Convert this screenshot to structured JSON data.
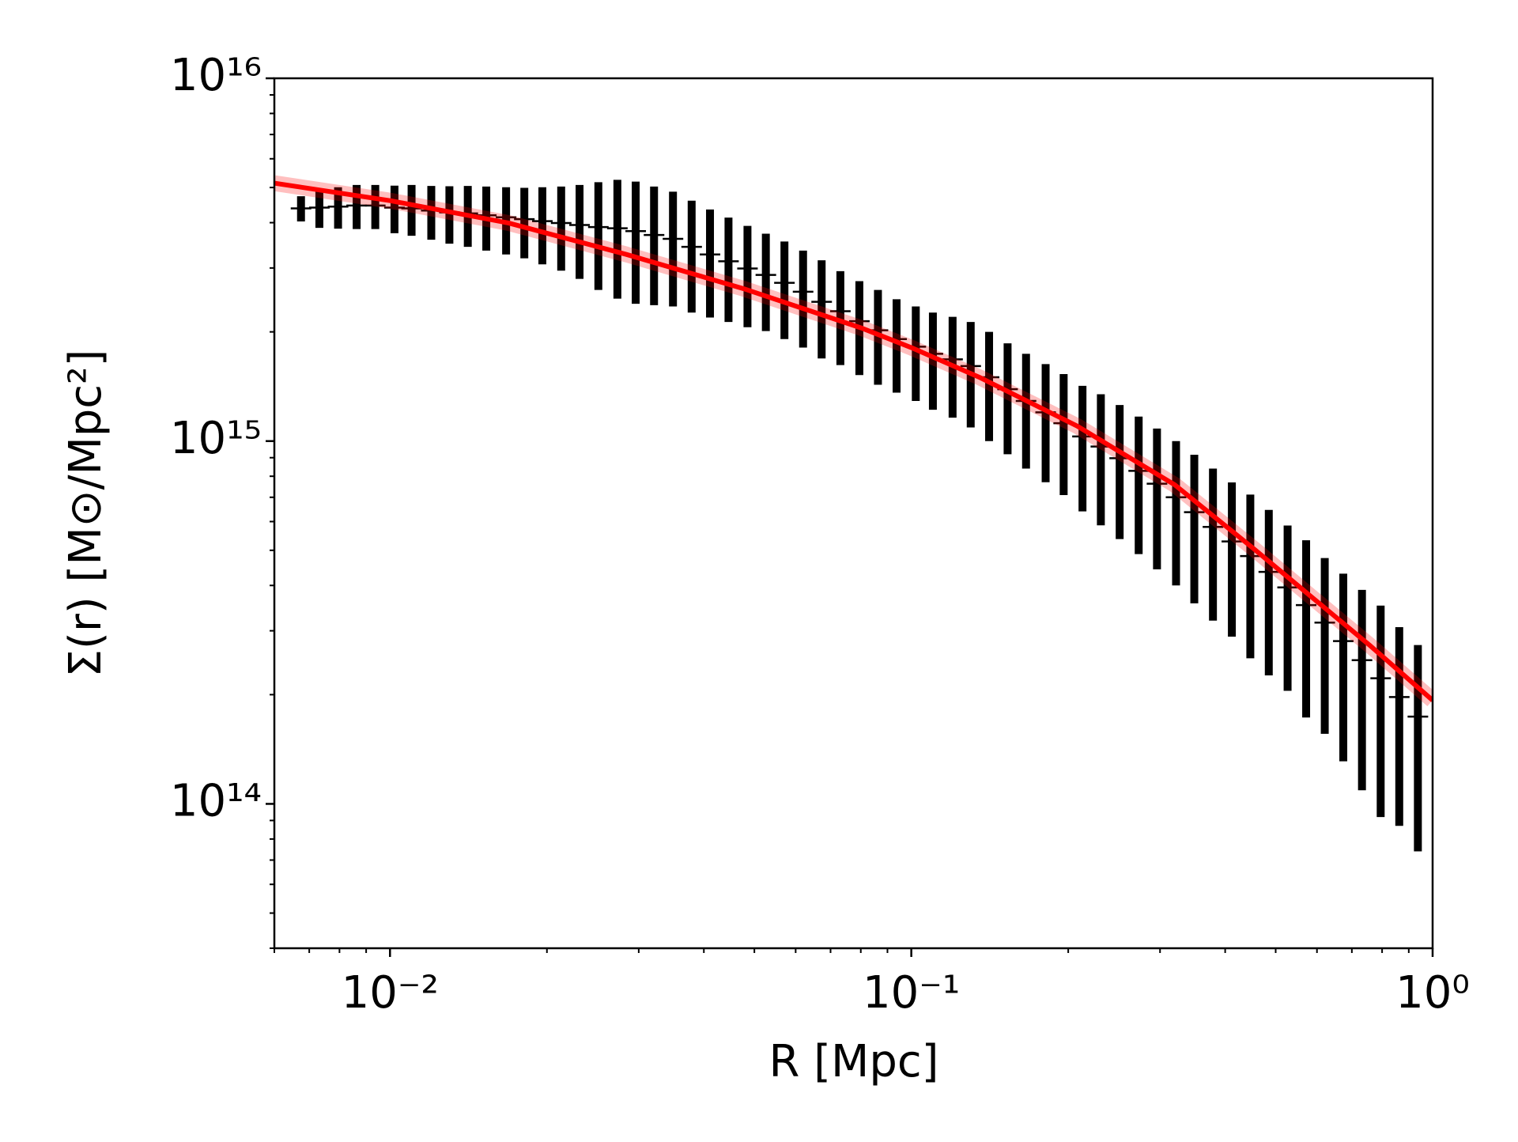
{
  "chart_data": {
    "type": "errorbar",
    "xlabel": "R [Mpc]",
    "ylabel": "Σ(r) [M⊙/Mpc²]",
    "xlog": true,
    "ylog": true,
    "xlim": [
      0.006,
      1
    ],
    "ylim": [
      40000000000000.0,
      1e+16
    ],
    "xticks": [
      {
        "value": 0.01,
        "label": "10⁻²"
      },
      {
        "value": 0.1,
        "label": "10⁻¹"
      },
      {
        "value": 1,
        "label": "10⁰"
      }
    ],
    "yticks": [
      {
        "value": 100000000000000.0,
        "label": "10¹⁴"
      },
      {
        "value": 1000000000000000.0,
        "label": "10¹⁵"
      },
      {
        "value": 1e+16,
        "label": "10¹⁶"
      }
    ],
    "xminorticks": [
      0.006,
      0.007,
      0.008,
      0.009,
      0.02,
      0.03,
      0.04,
      0.05,
      0.06,
      0.07,
      0.08,
      0.09,
      0.2,
      0.3,
      0.4,
      0.5,
      0.6,
      0.7,
      0.8,
      0.9
    ],
    "yminorticks": [
      40000000000000.0,
      50000000000000.0,
      60000000000000.0,
      70000000000000.0,
      80000000000000.0,
      90000000000000.0,
      200000000000000.0,
      300000000000000.0,
      400000000000000.0,
      500000000000000.0,
      600000000000000.0,
      700000000000000.0,
      800000000000000.0,
      900000000000000.0,
      2000000000000000.0,
      3000000000000000.0,
      4000000000000000.0,
      5000000000000000.0,
      6000000000000000.0,
      7000000000000000.0,
      8000000000000000.0,
      9000000000000000.0
    ],
    "series": [
      {
        "type": "errorbar",
        "color": "#000000",
        "x": [
          0.00675,
          0.00732,
          0.00795,
          0.00863,
          0.00937,
          0.0102,
          0.011,
          0.012,
          0.013,
          0.0141,
          0.0153,
          0.0167,
          0.0181,
          0.0196,
          0.0213,
          0.0231,
          0.0251,
          0.0273,
          0.0296,
          0.0321,
          0.0349,
          0.0379,
          0.0411,
          0.0446,
          0.0485,
          0.0526,
          0.0571,
          0.062,
          0.0673,
          0.0731,
          0.0795,
          0.0863,
          0.0937,
          0.102,
          0.11,
          0.12,
          0.13,
          0.141,
          0.153,
          0.166,
          0.181,
          0.196,
          0.213,
          0.231,
          0.251,
          0.273,
          0.296,
          0.322,
          0.349,
          0.379,
          0.412,
          0.447,
          0.485,
          0.527,
          0.572,
          0.621,
          0.674,
          0.732,
          0.795,
          0.863,
          0.937
        ],
        "values": [
          4380000000000000.0,
          4400000000000000.0,
          4430000000000000.0,
          4460000000000000.0,
          4460000000000000.0,
          4400000000000000.0,
          4380000000000000.0,
          4320000000000000.0,
          4270000000000000.0,
          4240000000000000.0,
          4190000000000000.0,
          4140000000000000.0,
          4090000000000000.0,
          4040000000000000.0,
          3990000000000000.0,
          3940000000000000.0,
          3890000000000000.0,
          3860000000000000.0,
          3790000000000000.0,
          3700000000000000.0,
          3610000000000000.0,
          3430000000000000.0,
          3270000000000000.0,
          3130000000000000.0,
          2990000000000000.0,
          2870000000000000.0,
          2730000000000000.0,
          2580000000000000.0,
          2420000000000000.0,
          2280000000000000.0,
          2140000000000000.0,
          2020000000000000.0,
          1910000000000000.0,
          1820000000000000.0,
          1740000000000000.0,
          1680000000000000.0,
          1610000000000000.0,
          1500000000000000.0,
          1390000000000000.0,
          1290000000000000.0,
          1200000000000000.0,
          1120000000000000.0,
          1030000000000000.0,
          966000000000000.0,
          897000000000000.0,
          828000000000000.0,
          763000000000000.0,
          700000000000000.0,
          637000000000000.0,
          580000000000000.0,
          529000000000000.0,
          482000000000000.0,
          436000000000000.0,
          395000000000000.0,
          353000000000000.0,
          316000000000000.0,
          281000000000000.0,
          249000000000000.0,
          222000000000000.0,
          197000000000000.0,
          174000000000000.0
        ],
        "errors": [
          350000000000000.0,
          530000000000000.0,
          580000000000000.0,
          620000000000000.0,
          620000000000000.0,
          660000000000000.0,
          700000000000000.0,
          730000000000000.0,
          770000000000000.0,
          810000000000000.0,
          840000000000000.0,
          870000000000000.0,
          900000000000000.0,
          970000000000000.0,
          1040000000000000.0,
          1140000000000000.0,
          1280000000000000.0,
          1390000000000000.0,
          1400000000000000.0,
          1330000000000000.0,
          1260000000000000.0,
          1170000000000000.0,
          1080000000000000.0,
          1000000000000000.0,
          930000000000000.0,
          860000000000000.0,
          820000000000000.0,
          770000000000000.0,
          730000000000000.0,
          660000000000000.0,
          620000000000000.0,
          590000000000000.0,
          550000000000000.0,
          530000000000000.0,
          520000000000000.0,
          520000000000000.0,
          520000000000000.0,
          500000000000000.0,
          470000000000000.0,
          450000000000000.0,
          430000000000000.0,
          410000000000000.0,
          390000000000000.0,
          380000000000000.0,
          360000000000000.0,
          340000000000000.0,
          320000000000000.0,
          300000000000000.0,
          280000000000000.0,
          260000000000000.0,
          240000000000000.0,
          230000000000000.0,
          210000000000000.0,
          190000000000000.0,
          180000000000000.0,
          160000000000000.0,
          150000000000000.0,
          140000000000000.0,
          130000000000000.0,
          110000000000000.0,
          100000000000000.0
        ]
      },
      {
        "type": "line",
        "color": "#ff0000",
        "x": [
          0.006,
          0.01,
          0.0169,
          0.0284,
          0.0477,
          0.0802,
          0.1,
          0.135,
          0.208,
          0.32,
          0.453,
          0.587,
          0.761,
          1
        ],
        "values": [
          5140000000000000.0,
          4600000000000000.0,
          3990000000000000.0,
          3270000000000000.0,
          2630000000000000.0,
          2050000000000000.0,
          1810000000000000.0,
          1500000000000000.0,
          1100000000000000.0,
          758000000000000.0,
          506000000000000.0,
          371000000000000.0,
          272000000000000.0,
          193000000000000.0
        ]
      }
    ]
  }
}
